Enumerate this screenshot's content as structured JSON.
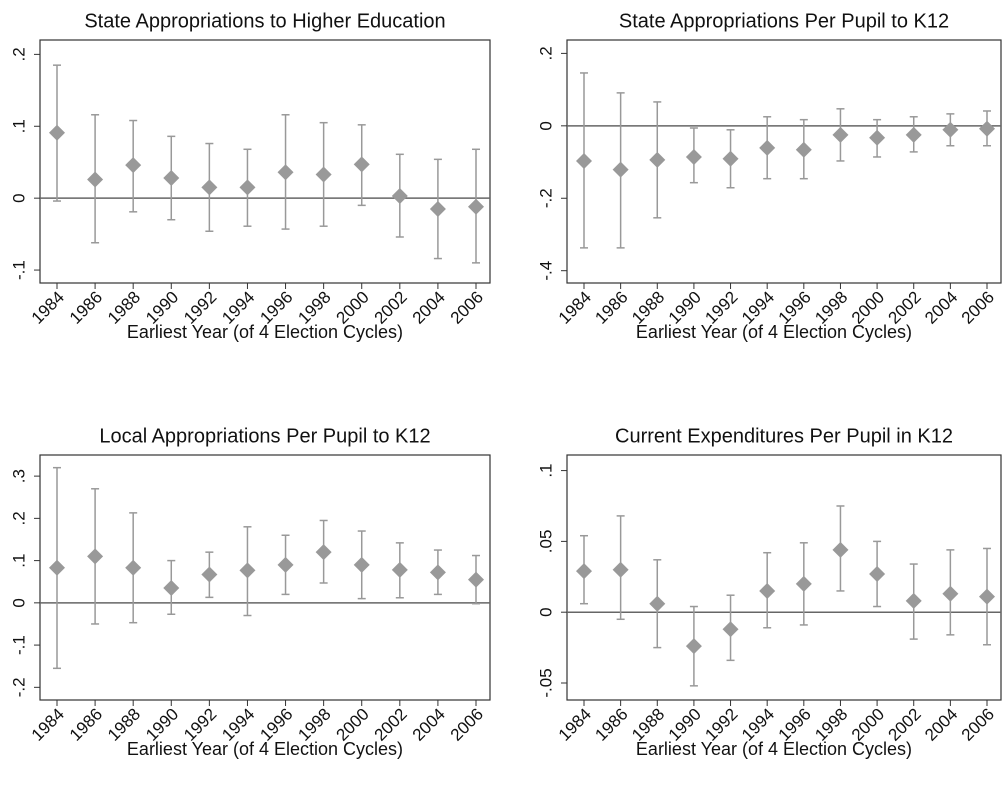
{
  "chart_data": [
    {
      "type": "errorbar",
      "title": "State Appropriations to Higher Education",
      "x_label": "Earliest Year (of 4 Election Cycles)",
      "categories": [
        "1984",
        "1986",
        "1988",
        "1990",
        "1992",
        "1994",
        "1996",
        "1998",
        "2000",
        "2002",
        "2004",
        "2006"
      ],
      "values": [
        0.091,
        0.026,
        0.046,
        0.028,
        0.015,
        0.015,
        0.036,
        0.033,
        0.047,
        0.003,
        -0.015,
        -0.012
      ],
      "low": [
        -0.004,
        -0.062,
        -0.019,
        -0.03,
        -0.046,
        -0.039,
        -0.043,
        -0.039,
        -0.01,
        -0.054,
        -0.084,
        -0.09
      ],
      "high": [
        0.185,
        0.116,
        0.108,
        0.086,
        0.076,
        0.068,
        0.116,
        0.105,
        0.102,
        0.061,
        0.054,
        0.068
      ],
      "color": "#999999",
      "ylim": [
        -0.118,
        0.22
      ],
      "yticks": [
        {
          "value": 0.2,
          "label": ".2"
        },
        {
          "value": 0.1,
          "label": ".1"
        },
        0,
        {
          "value": -0.1,
          "label": "-.1"
        }
      ]
    },
    {
      "type": "errorbar",
      "title": "State Appropriations Per Pupil to K12",
      "x_label": "Earliest Year (of 4 Election Cycles)",
      "categories": [
        "1984",
        "1986",
        "1988",
        "1990",
        "1992",
        "1994",
        "1996",
        "1998",
        "2000",
        "2002",
        "2004",
        "2006"
      ],
      "values": [
        -0.097,
        -0.121,
        -0.094,
        -0.086,
        -0.091,
        -0.061,
        -0.066,
        -0.025,
        -0.033,
        -0.025,
        -0.011,
        -0.008
      ],
      "low": [
        -0.337,
        -0.337,
        -0.254,
        -0.157,
        -0.171,
        -0.146,
        -0.146,
        -0.097,
        -0.086,
        -0.072,
        -0.055,
        -0.055
      ],
      "high": [
        0.146,
        0.091,
        0.066,
        -0.006,
        -0.011,
        0.025,
        0.017,
        0.047,
        0.017,
        0.025,
        0.033,
        0.041
      ],
      "color": "#999999",
      "ylim": [
        -0.434,
        0.237
      ],
      "yticks": [
        {
          "value": 0.2,
          "label": ".2"
        },
        0,
        {
          "value": -0.2,
          "label": "-.2"
        },
        {
          "value": -0.4,
          "label": "-.4"
        }
      ]
    },
    {
      "type": "errorbar",
      "title": "Local Appropriations Per Pupil to K12",
      "x_label": "Earliest Year (of 4 Election Cycles)",
      "categories": [
        "1984",
        "1986",
        "1988",
        "1990",
        "1992",
        "1994",
        "1996",
        "1998",
        "2000",
        "2002",
        "2004",
        "2006"
      ],
      "values": [
        0.083,
        0.11,
        0.083,
        0.035,
        0.067,
        0.077,
        0.09,
        0.12,
        0.09,
        0.078,
        0.072,
        0.055
      ],
      "low": [
        -0.155,
        -0.05,
        -0.047,
        -0.027,
        0.013,
        -0.03,
        0.02,
        0.047,
        0.01,
        0.012,
        0.02,
        -0.002
      ],
      "high": [
        0.32,
        0.27,
        0.213,
        0.1,
        0.12,
        0.18,
        0.16,
        0.195,
        0.17,
        0.142,
        0.125,
        0.112
      ],
      "color": "#999999",
      "ylim": [
        -0.23,
        0.35
      ],
      "yticks": [
        {
          "value": 0.3,
          "label": ".3"
        },
        {
          "value": 0.2,
          "label": ".2"
        },
        {
          "value": 0.1,
          "label": ".1"
        },
        0,
        {
          "value": -0.1,
          "label": "-.1"
        },
        {
          "value": -0.2,
          "label": "-.2"
        }
      ]
    },
    {
      "type": "errorbar",
      "title": "Current Expenditures Per Pupil in K12",
      "x_label": "Earliest Year (of 4 Election Cycles)",
      "categories": [
        "1984",
        "1986",
        "1988",
        "1990",
        "1992",
        "1994",
        "1996",
        "1998",
        "2000",
        "2002",
        "2004",
        "2006"
      ],
      "values": [
        0.029,
        0.03,
        0.006,
        -0.024,
        -0.012,
        0.015,
        0.02,
        0.044,
        0.027,
        0.008,
        0.013,
        0.011
      ],
      "low": [
        0.006,
        -0.005,
        -0.025,
        -0.052,
        -0.034,
        -0.011,
        -0.009,
        0.015,
        0.004,
        -0.019,
        -0.016,
        -0.023
      ],
      "high": [
        0.054,
        0.068,
        0.037,
        0.004,
        0.012,
        0.042,
        0.049,
        0.075,
        0.05,
        0.034,
        0.044,
        0.045
      ],
      "color": "#999999",
      "ylim": [
        -0.062,
        0.111
      ],
      "yticks": [
        {
          "value": 0.1,
          "label": ".1"
        },
        {
          "value": 0.05,
          "label": ".05"
        },
        0,
        {
          "value": -0.05,
          "label": "-.05"
        }
      ]
    }
  ]
}
